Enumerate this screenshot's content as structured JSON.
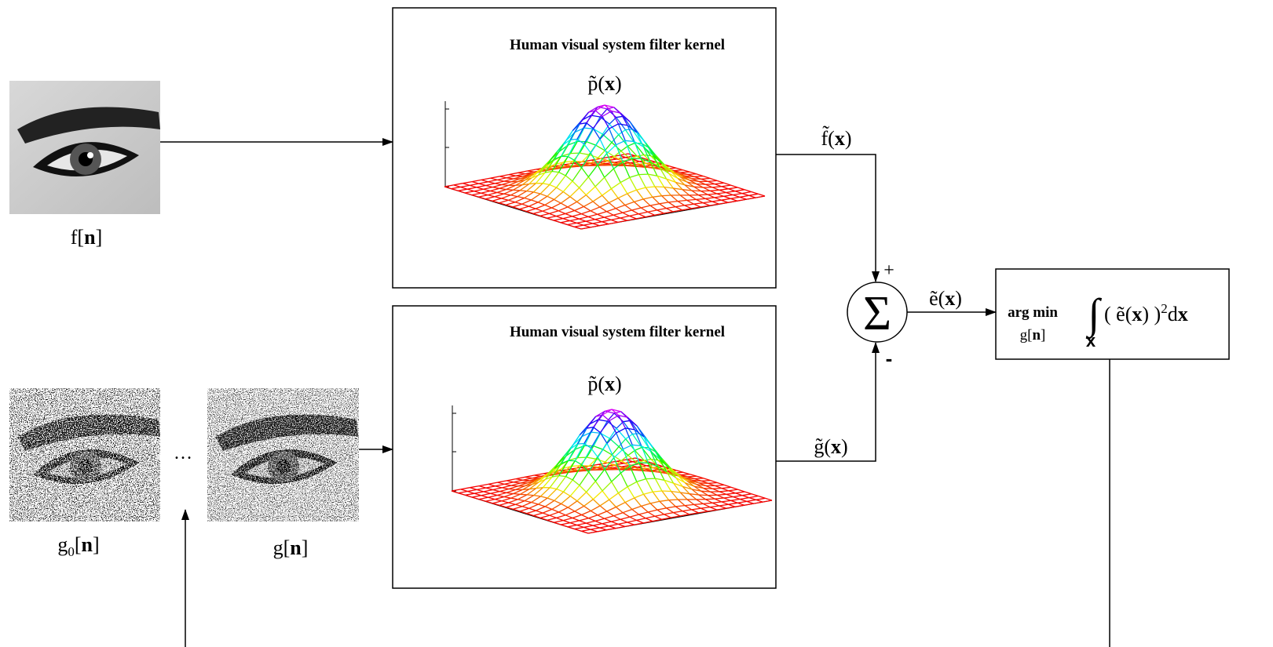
{
  "images": {
    "original": [
      "f[",
      "n",
      "]"
    ],
    "initial": [
      "g",
      "0",
      "[",
      "n",
      "]"
    ],
    "current": [
      "g[",
      "n",
      "]"
    ],
    "ellipsis": "…"
  },
  "filters": [
    {
      "title": "Human visual system filter kernel",
      "kernel": [
        "p̃(",
        "x",
        ")"
      ]
    },
    {
      "title": "Human visual system filter kernel",
      "kernel": [
        "p̃(",
        "x",
        ")"
      ]
    }
  ],
  "signals": {
    "filtered_original": [
      "f̃(",
      "x",
      ")"
    ],
    "filtered_halftone": [
      "g̃(",
      "x",
      ")"
    ],
    "error": [
      "ẽ(",
      "x",
      ")"
    ]
  },
  "summer": {
    "symbol": "Σ",
    "plus": "+",
    "minus": "-"
  },
  "objective": {
    "operator": "arg min",
    "variable": [
      "g[",
      "n",
      "]"
    ],
    "integral": "∫",
    "domain": "x",
    "integrand": [
      "( ẽ(",
      "x",
      ") )",
      "2",
      "d",
      "x"
    ]
  }
}
